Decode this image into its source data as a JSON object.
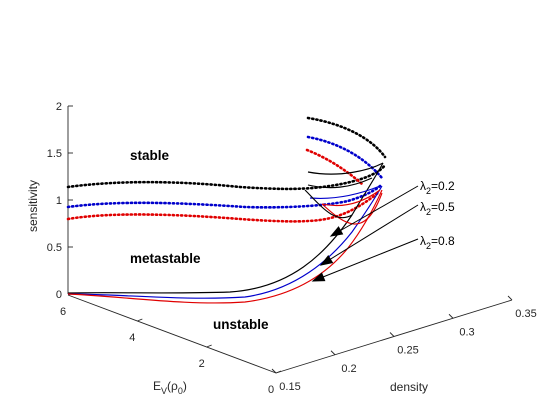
{
  "chart_data": {
    "type": "line",
    "zlabel": "sensitivity",
    "xlabel_main": "E",
    "xlabel_sub1": "V",
    "xlabel_mid": "(ρ",
    "xlabel_sub2": "0",
    "xlabel_end": ")",
    "ylabel": "density",
    "z_ticks": [
      "0",
      "0.5",
      "1",
      "1.5",
      "2"
    ],
    "e_ticks": [
      "6",
      "4",
      "2",
      "0"
    ],
    "d_ticks": [
      "0.15",
      "0.2",
      "0.25",
      "0.3",
      "0.35"
    ],
    "zlim": [
      0,
      2
    ],
    "ev_lim": [
      0,
      6
    ],
    "density_lim": [
      0.15,
      0.35
    ],
    "regions": {
      "stable": "stable",
      "metastable": "metastable",
      "unstable": "unstable"
    },
    "series": [
      {
        "name": "λ2=0.2",
        "label_main": "λ",
        "label_sub": "2",
        "label_value": "=0.2",
        "color": "#000000"
      },
      {
        "name": "λ2=0.5",
        "label_main": "λ",
        "label_sub": "2",
        "label_value": "=0.5",
        "color": "#0000cc"
      },
      {
        "name": "λ2=0.8",
        "label_main": "λ",
        "label_sub": "2",
        "label_value": "=0.8",
        "color": "#e00000"
      }
    ]
  }
}
